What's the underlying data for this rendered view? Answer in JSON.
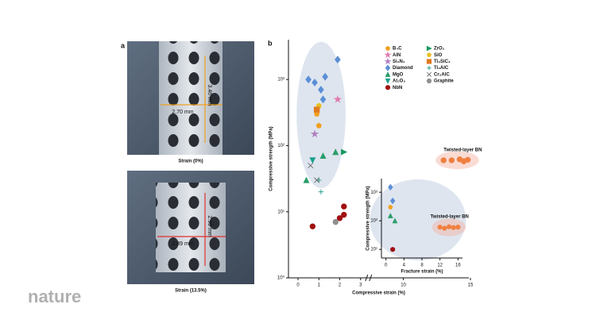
{
  "panel_a": {
    "label": "a",
    "top": {
      "width": "2.70 mm",
      "height": "3.46 mm",
      "caption": "Strain (0%)"
    },
    "bottom": {
      "width": "2.89 mm",
      "height": "2.99 mm",
      "caption": "Strain (13.5%)"
    }
  },
  "watermark": "nature",
  "chart_data": [
    {
      "type": "scatter",
      "panel": "b",
      "x_label": "Compressive strain (%)",
      "y_label": "Compressive strength (MPa)",
      "xlim": [
        0,
        15
      ],
      "xbreak": [
        3,
        8
      ],
      "xticks": [
        0,
        1,
        2,
        3,
        10,
        15
      ],
      "ylim": [
        1,
        4000
      ],
      "log_y": true,
      "yticks": [
        {
          "value": 1,
          "label": "10⁰"
        },
        {
          "value": 10,
          "label": "10¹"
        },
        {
          "value": 100,
          "label": "10²"
        },
        {
          "value": 1000,
          "label": "10³"
        }
      ],
      "series": [
        {
          "name": "B₄C",
          "color": "#f0a020",
          "marker": "pentagon",
          "x": [
            0.9,
            1.0
          ],
          "values": [
            300,
            200
          ]
        },
        {
          "name": "AlN",
          "color": "#e07ab0",
          "marker": "star",
          "x": [
            1.9
          ],
          "values": [
            500
          ]
        },
        {
          "name": "Si₃N₄",
          "color": "#b080c0",
          "marker": "star",
          "x": [
            0.8
          ],
          "values": [
            150
          ]
        },
        {
          "name": "Diamond",
          "color": "#5b8fd6",
          "marker": "diamond",
          "x": [
            0.5,
            0.8,
            1.1,
            1.3,
            1.9,
            1.2
          ],
          "values": [
            1000,
            900,
            700,
            1100,
            2000,
            500
          ]
        },
        {
          "name": "MgO",
          "color": "#2a9d6a",
          "marker": "triangle",
          "x": [
            0.4,
            1.2,
            1.8
          ],
          "values": [
            30,
            70,
            80
          ]
        },
        {
          "name": "Al₂O₃",
          "color": "#1aa08a",
          "marker": "triangle-down",
          "x": [
            0.7
          ],
          "values": [
            60
          ]
        },
        {
          "name": "NbN",
          "color": "#a01010",
          "marker": "circle",
          "x": [
            0.7,
            2.0,
            2.2,
            2.2
          ],
          "values": [
            6,
            8,
            12,
            9
          ]
        },
        {
          "name": "ZrO₂",
          "color": "#1a9a60",
          "marker": "triangle-right",
          "x": [
            2.2
          ],
          "values": [
            80
          ]
        },
        {
          "name": "SiO",
          "color": "#e8c020",
          "marker": "pentagon",
          "x": [
            1.0
          ],
          "values": [
            400
          ]
        },
        {
          "name": "Ti₃SiC₂",
          "color": "#e07a20",
          "marker": "square",
          "x": [
            0.9
          ],
          "values": [
            350
          ]
        },
        {
          "name": "Ti₂AlC",
          "color": "#2aa090",
          "marker": "plus",
          "x": [
            1.0,
            1.1
          ],
          "values": [
            30,
            20
          ]
        },
        {
          "name": "Cr₂AlC",
          "color": "#707070",
          "marker": "cross",
          "x": [
            0.6,
            0.9
          ],
          "values": [
            50,
            30
          ]
        },
        {
          "name": "Graphite",
          "color": "#909090",
          "marker": "circle",
          "x": [
            1.8
          ],
          "values": [
            7
          ]
        },
        {
          "name": "Twisted-layer BN",
          "color": "#f08040",
          "marker": "circle",
          "x": [
            13.0,
            13.6,
            14.2,
            14.5,
            14.8
          ],
          "values": [
            60,
            60,
            62,
            58,
            61
          ]
        }
      ]
    },
    {
      "type": "scatter",
      "x_label": "Fracture strain (%)",
      "y_label": "Compressive strength (MPa)",
      "xlim": [
        -1,
        17
      ],
      "xticks": [
        0,
        4,
        8,
        12,
        16
      ],
      "ylim": [
        5,
        3000
      ],
      "log_y": true,
      "yticks": [
        {
          "value": 10,
          "label": "10¹"
        },
        {
          "value": 100,
          "label": "10²"
        },
        {
          "value": 1000,
          "label": "10³"
        }
      ],
      "series": [
        {
          "name": "Diamond",
          "color": "#5b8fd6",
          "marker": "diamond",
          "x": [
            1.0,
            1.5
          ],
          "values": [
            1500,
            500
          ]
        },
        {
          "name": "B₄C",
          "color": "#f0a020",
          "marker": "pentagon",
          "x": [
            1.0
          ],
          "values": [
            300
          ]
        },
        {
          "name": "MgO",
          "color": "#2a9d6a",
          "marker": "triangle",
          "x": [
            1.0,
            2.0
          ],
          "values": [
            150,
            100
          ]
        },
        {
          "name": "NbN",
          "color": "#a01010",
          "marker": "circle",
          "x": [
            1.5
          ],
          "values": [
            10
          ]
        },
        {
          "name": "Twisted-layer BN",
          "color": "#f08040",
          "marker": "circle",
          "x": [
            12.0,
            13.0,
            14.0,
            15.0,
            16.0
          ],
          "values": [
            60,
            55,
            62,
            58,
            60
          ]
        }
      ]
    }
  ]
}
